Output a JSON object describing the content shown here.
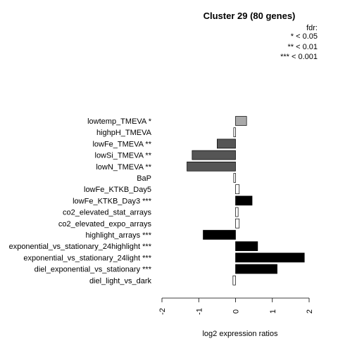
{
  "chart_data": {
    "type": "bar",
    "orientation": "horizontal",
    "title": "Cluster 29 (80 genes)",
    "xlabel": "log2 expression ratios",
    "xlim": [
      -2,
      2
    ],
    "xticks": [
      "-2",
      "-1",
      "0",
      "1",
      "2"
    ],
    "legend": {
      "title": "fdr:",
      "entries": [
        "* < 0.05",
        "** < 0.01",
        "*** < 0.001"
      ],
      "position": "top-right"
    },
    "categories": [
      "lowtemp_TMEVA *",
      "highpH_TMEVA",
      "lowFe_TMEVA **",
      "lowSi_TMEVA **",
      "lowN_TMEVA **",
      "BaP",
      "lowFe_KTKB_Day5",
      "lowFe_KTKB_Day3 ***",
      "co2_elevated_stat_arrays",
      "co2_elevated_expo_arrays",
      "highlight_arrays ***",
      "exponential_vs_stationary_24highlight ***",
      "exponential_vs_stationary_24light ***",
      "diel_exponential_vs_stationary ***",
      "diel_light_vs_dark"
    ],
    "values": [
      0.3,
      -0.05,
      -0.5,
      -1.18,
      -1.32,
      -0.05,
      0.1,
      0.45,
      0.07,
      0.1,
      -0.88,
      0.6,
      1.87,
      1.13,
      -0.07
    ],
    "significance": [
      "*",
      "",
      "**",
      "**",
      "**",
      "",
      "",
      "***",
      "",
      "",
      "***",
      "***",
      "***",
      "***",
      ""
    ],
    "colors": {
      "*": "#a9a9a9",
      "**": "#555555",
      "***": "#000000",
      "": "#ffffff"
    }
  }
}
